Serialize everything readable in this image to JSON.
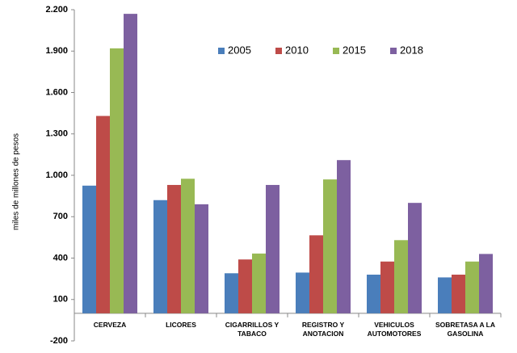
{
  "chart_data": {
    "type": "bar",
    "y_label": "miles de millones de pesos",
    "categories": [
      "CERVEZA",
      "LICORES",
      "CIGARRILLOS Y TABACO",
      "REGISTRO Y ANOTACION",
      "VEHICULOS AUTOMOTORES",
      "SOBRETASA A LA GASOLINA"
    ],
    "series": [
      {
        "name": "2005",
        "color": "#4a7ebb",
        "values": [
          925,
          820,
          290,
          295,
          280,
          260
        ]
      },
      {
        "name": "2010",
        "color": "#be4b48",
        "values": [
          1430,
          930,
          390,
          565,
          375,
          280
        ]
      },
      {
        "name": "2015",
        "color": "#98b954",
        "values": [
          1920,
          975,
          433,
          970,
          530,
          375
        ]
      },
      {
        "name": "2018",
        "color": "#7d60a0",
        "values": [
          2170,
          790,
          930,
          1110,
          800,
          430
        ]
      }
    ],
    "ylim": [
      -200,
      2200
    ],
    "yticks": [
      -200,
      100,
      400,
      700,
      {
        "value": 1000,
        "label": "1.000"
      },
      {
        "value": 1300,
        "label": "1.300"
      },
      {
        "value": 1600,
        "label": "1.600"
      },
      {
        "value": 1900,
        "label": "1.900"
      },
      {
        "value": 2200,
        "label": "2.200"
      }
    ],
    "grid": false,
    "legend": "top-center"
  }
}
